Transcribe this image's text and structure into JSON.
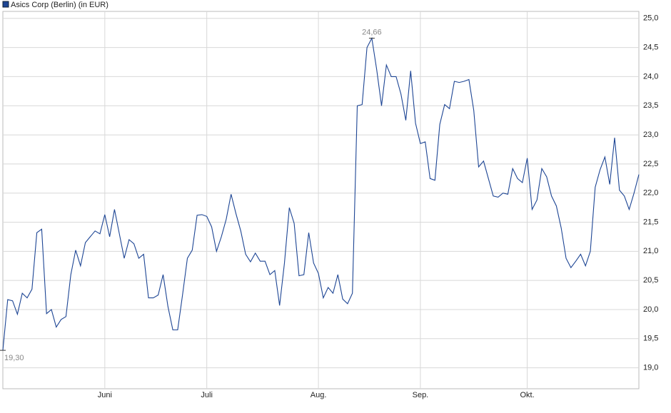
{
  "chart_data": {
    "type": "line",
    "categories": [
      null,
      null,
      null,
      null,
      null,
      null,
      null,
      null,
      null,
      null,
      null,
      null,
      null,
      null,
      null,
      null,
      null,
      null,
      null,
      null,
      null,
      "Juni",
      null,
      null,
      null,
      null,
      null,
      null,
      null,
      null,
      null,
      null,
      null,
      null,
      null,
      null,
      null,
      null,
      null,
      null,
      null,
      null,
      "Juli",
      null,
      null,
      null,
      null,
      null,
      null,
      null,
      null,
      null,
      null,
      null,
      null,
      null,
      null,
      null,
      null,
      null,
      null,
      null,
      null,
      null,
      null,
      "Aug.",
      null,
      null,
      null,
      null,
      null,
      null,
      null,
      null,
      null,
      null,
      null,
      null,
      null,
      null,
      null,
      null,
      null,
      null,
      null,
      null,
      "Sep.",
      null,
      null,
      null,
      null,
      null,
      null,
      null,
      null,
      null,
      null,
      null,
      null,
      null,
      null,
      null,
      null,
      null,
      null,
      null,
      null,
      null,
      "Okt.",
      null,
      null,
      null,
      null,
      null,
      null,
      null,
      null,
      null,
      null,
      null,
      null,
      null,
      null,
      null,
      null,
      null,
      null,
      null,
      null,
      null,
      null,
      null
    ],
    "series": [
      {
        "name": "Asics Corp (Berlin) (in EUR)",
        "color": "#1d4594",
        "values": [
          19.3,
          20.17,
          20.15,
          19.92,
          20.28,
          20.2,
          20.35,
          21.32,
          21.38,
          19.93,
          20.0,
          19.7,
          19.83,
          19.88,
          20.6,
          21.02,
          20.75,
          21.15,
          21.25,
          21.35,
          21.3,
          21.63,
          21.25,
          21.72,
          21.3,
          20.88,
          21.2,
          21.13,
          20.88,
          20.95,
          20.2,
          20.2,
          20.25,
          20.6,
          20.05,
          19.65,
          19.65,
          20.25,
          20.88,
          21.02,
          21.62,
          21.63,
          21.6,
          21.42,
          21.0,
          21.25,
          21.55,
          21.98,
          21.65,
          21.35,
          20.95,
          20.82,
          20.97,
          20.83,
          20.83,
          20.6,
          20.67,
          20.07,
          20.8,
          21.75,
          21.48,
          20.58,
          20.6,
          21.32,
          20.8,
          20.62,
          20.2,
          20.38,
          20.28,
          20.6,
          20.18,
          20.1,
          20.28,
          23.5,
          23.52,
          24.5,
          24.66,
          24.12,
          23.5,
          24.2,
          24.0,
          24.0,
          23.7,
          23.25,
          24.1,
          23.2,
          22.85,
          22.88,
          22.25,
          22.22,
          23.18,
          23.52,
          23.45,
          23.92,
          23.9,
          23.92,
          23.95,
          23.42,
          22.45,
          22.55,
          22.25,
          21.95,
          21.93,
          22.0,
          21.98,
          22.42,
          22.25,
          22.18,
          22.6,
          21.72,
          21.88,
          22.42,
          22.28,
          21.95,
          21.78,
          21.4,
          20.88,
          20.72,
          20.83,
          20.95,
          20.75,
          21.0,
          22.1,
          22.4,
          22.62,
          22.15,
          22.95,
          22.05,
          21.95,
          21.72,
          22.0,
          22.32
        ],
        "value_labels": [
          "19,30",
          null,
          null,
          null,
          null,
          null,
          null,
          null,
          null,
          null,
          null,
          null,
          null,
          null,
          null,
          null,
          null,
          null,
          null,
          null,
          null,
          null,
          null,
          null,
          null,
          null,
          null,
          null,
          null,
          null,
          null,
          null,
          null,
          null,
          null,
          null,
          null,
          null,
          null,
          null,
          null,
          null,
          null,
          null,
          null,
          null,
          null,
          null,
          null,
          null,
          null,
          null,
          null,
          null,
          null,
          null,
          null,
          null,
          null,
          null,
          null,
          null,
          null,
          null,
          null,
          null,
          null,
          null,
          null,
          null,
          null,
          null,
          null,
          null,
          null,
          null,
          "24,66",
          null,
          null,
          null,
          null,
          null,
          null,
          null,
          null,
          null,
          null,
          null,
          null,
          null,
          null,
          null,
          null,
          null,
          null,
          null,
          null,
          null,
          null,
          null,
          null,
          null,
          null,
          null,
          null,
          null,
          null,
          null,
          null,
          null,
          null,
          null,
          null,
          null,
          null,
          null,
          null,
          null,
          null,
          null,
          null,
          null,
          null,
          null,
          null,
          null,
          null,
          null,
          null,
          null,
          null,
          null
        ]
      }
    ],
    "ylim": [
      18.64,
      25.12
    ],
    "yticks": [
      {
        "value": 19,
        "label": "19,0"
      },
      {
        "value": 19.5,
        "label": "19,5"
      },
      {
        "value": 20,
        "label": "20,0"
      },
      {
        "value": 20.5,
        "label": "20,5"
      },
      {
        "value": 21,
        "label": "21,0"
      },
      {
        "value": 21.5,
        "label": "21,5"
      },
      {
        "value": 22,
        "label": "22,0"
      },
      {
        "value": 22.5,
        "label": "22,5"
      },
      {
        "value": 23,
        "label": "23,0"
      },
      {
        "value": 23.5,
        "label": "23,5"
      },
      {
        "value": 24,
        "label": "24,0"
      },
      {
        "value": 24.5,
        "label": "24,5"
      },
      {
        "value": 25,
        "label": "25,0"
      }
    ],
    "grid": true,
    "legend": "top-left"
  }
}
